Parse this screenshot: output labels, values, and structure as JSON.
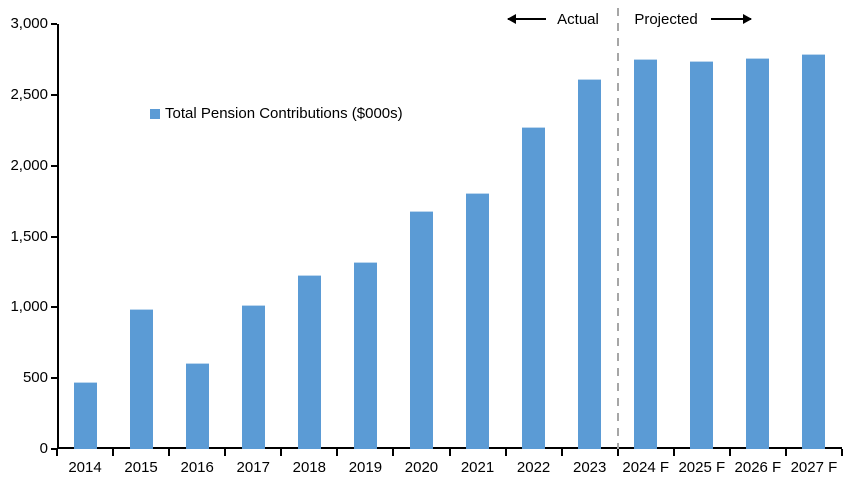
{
  "chart_data": {
    "type": "bar",
    "title": "",
    "categories": [
      "2014",
      "2015",
      "2016",
      "2017",
      "2018",
      "2019",
      "2020",
      "2021",
      "2022",
      "2023",
      "2024 F",
      "2025 F",
      "2026 F",
      "2027 F"
    ],
    "series": [
      {
        "name": "Total Pension Contributions ($000s)",
        "color": "#5B9BD5",
        "values": [
          470,
          990,
          610,
          1020,
          1230,
          1320,
          1680,
          1810,
          2270,
          2610,
          2750,
          2740,
          2760,
          2790
        ]
      }
    ],
    "xlabel": "",
    "ylabel": "",
    "ylim": [
      0,
      3000
    ],
    "ytick_interval": 500,
    "ytick_labels": [
      "3,000",
      "2,500",
      "2,000",
      "1,500",
      "1,000",
      "500",
      "0"
    ],
    "grid": false,
    "axis_color": "#000000",
    "legend": {
      "label": "Total Pension Contributions ($000s)",
      "marker_color": "#5B9BD5",
      "position": "inside-upper-left"
    },
    "annotations": {
      "actual_label": "Actual",
      "projected_label": "Projected",
      "divider": {
        "between": [
          "2023",
          "2024 F"
        ],
        "style": "dashed",
        "color": "#A6A6A6"
      }
    }
  }
}
